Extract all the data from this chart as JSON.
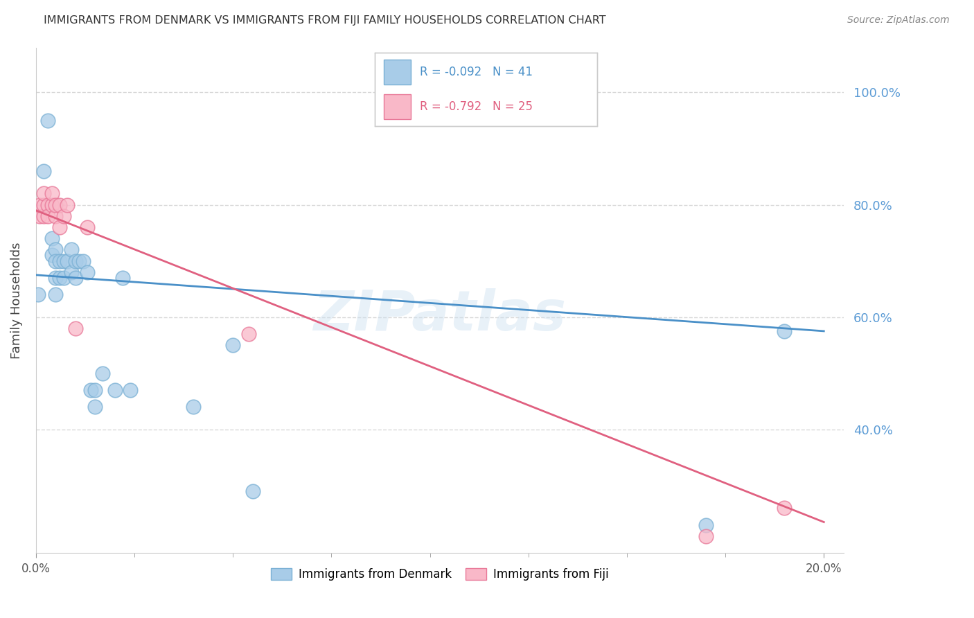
{
  "title": "IMMIGRANTS FROM DENMARK VS IMMIGRANTS FROM FIJI FAMILY HOUSEHOLDS CORRELATION CHART",
  "source": "Source: ZipAtlas.com",
  "ylabel": "Family Households",
  "ytick_labels": [
    "100.0%",
    "80.0%",
    "60.0%",
    "40.0%"
  ],
  "ytick_values": [
    1.0,
    0.8,
    0.6,
    0.4
  ],
  "xlim": [
    0.0,
    0.205
  ],
  "ylim": [
    0.18,
    1.08
  ],
  "denmark_R": -0.092,
  "denmark_N": 41,
  "fiji_R": -0.792,
  "fiji_N": 25,
  "denmark_color": "#a8cce8",
  "fiji_color": "#f9b8c8",
  "denmark_edge_color": "#7ab0d4",
  "fiji_edge_color": "#e87898",
  "denmark_line_color": "#4a90c8",
  "fiji_line_color": "#e06080",
  "watermark": "ZIPatlas",
  "denmark_points_x": [
    0.0005,
    0.002,
    0.003,
    0.004,
    0.004,
    0.005,
    0.005,
    0.005,
    0.005,
    0.006,
    0.006,
    0.007,
    0.007,
    0.008,
    0.009,
    0.009,
    0.01,
    0.01,
    0.011,
    0.012,
    0.013,
    0.014,
    0.015,
    0.015,
    0.017,
    0.02,
    0.022,
    0.024,
    0.04,
    0.05,
    0.055,
    0.17,
    0.19
  ],
  "denmark_points_y": [
    0.64,
    0.86,
    0.95,
    0.74,
    0.71,
    0.72,
    0.7,
    0.67,
    0.64,
    0.7,
    0.67,
    0.7,
    0.67,
    0.7,
    0.72,
    0.68,
    0.7,
    0.67,
    0.7,
    0.7,
    0.68,
    0.47,
    0.47,
    0.44,
    0.5,
    0.47,
    0.67,
    0.47,
    0.44,
    0.55,
    0.29,
    0.23,
    0.575
  ],
  "fiji_points_x": [
    0.001,
    0.001,
    0.002,
    0.002,
    0.002,
    0.003,
    0.003,
    0.004,
    0.004,
    0.005,
    0.005,
    0.006,
    0.006,
    0.007,
    0.008,
    0.01,
    0.013,
    0.054,
    0.17,
    0.19
  ],
  "fiji_points_y": [
    0.78,
    0.8,
    0.78,
    0.8,
    0.82,
    0.8,
    0.78,
    0.8,
    0.82,
    0.78,
    0.8,
    0.76,
    0.8,
    0.78,
    0.8,
    0.58,
    0.76,
    0.57,
    0.21,
    0.26
  ],
  "denmark_trend_x": [
    0.0,
    0.2
  ],
  "denmark_trend_y": [
    0.675,
    0.575
  ],
  "fiji_trend_x": [
    0.0,
    0.2
  ],
  "fiji_trend_y": [
    0.79,
    0.235
  ],
  "xtick_minor": [
    0.025,
    0.05,
    0.075,
    0.1,
    0.125,
    0.15,
    0.175
  ],
  "grid_color": "#d8d8d8",
  "spine_color": "#cccccc"
}
